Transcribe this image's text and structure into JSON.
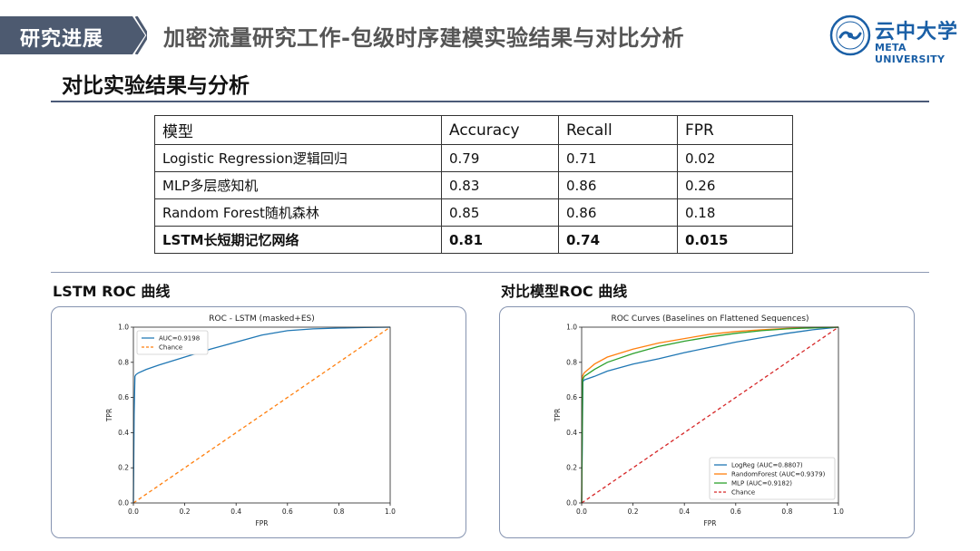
{
  "header": {
    "tag": "研究进展",
    "title": "加密流量研究工作-包级时序建模实验结果与对比分析",
    "logo_cn": "云中大学",
    "logo_en": "META UNIVERSITY",
    "accent": "#1a5fa6",
    "tag_color": "#4d5a70"
  },
  "section_title": "对比实验结果与分析",
  "table": {
    "headers": [
      "模型",
      "Accuracy",
      "Recall",
      "FPR"
    ],
    "rows": [
      [
        "Logistic Regression逻辑回归",
        "0.79",
        "0.71",
        "0.02"
      ],
      [
        "MLP多层感知机",
        "0.83",
        "0.86",
        "0.26"
      ],
      [
        "Random Forest随机森林",
        "0.85",
        "0.86",
        "0.18"
      ],
      [
        "LSTM长短期记忆网络",
        "0.81",
        "0.74",
        "0.015"
      ]
    ]
  },
  "left_panel": {
    "heading": "LSTM ROC 曲线"
  },
  "right_panel": {
    "heading": "对比模型ROC 曲线"
  },
  "chart_data": [
    {
      "type": "line",
      "title": "ROC - LSTM (masked+ES)",
      "xlabel": "FPR",
      "ylabel": "TPR",
      "xlim": [
        0,
        1
      ],
      "ylim": [
        0,
        1
      ],
      "xticks": [
        "0.0",
        "0.2",
        "0.4",
        "0.6",
        "0.8",
        "1.0"
      ],
      "yticks": [
        "0.0",
        "0.2",
        "0.4",
        "0.6",
        "0.8",
        "1.0"
      ],
      "grid": false,
      "legend": "top-left",
      "series": [
        {
          "name": "AUC=0.9198",
          "color": "#1f77b4",
          "style": "solid",
          "x": [
            0,
            0.003,
            0.006,
            0.01,
            0.02,
            0.05,
            0.1,
            0.2,
            0.3,
            0.4,
            0.5,
            0.6,
            0.7,
            0.8,
            0.9,
            1.0
          ],
          "y": [
            0,
            0.5,
            0.72,
            0.73,
            0.74,
            0.76,
            0.785,
            0.83,
            0.875,
            0.915,
            0.955,
            0.98,
            0.99,
            0.995,
            0.998,
            1.0
          ]
        },
        {
          "name": "Chance",
          "color": "#ff7f0e",
          "style": "dashed",
          "x": [
            0,
            1
          ],
          "y": [
            0,
            1
          ]
        }
      ]
    },
    {
      "type": "line",
      "title": "ROC Curves (Baselines on Flattened Sequences)",
      "xlabel": "FPR",
      "ylabel": "TPR",
      "xlim": [
        0,
        1
      ],
      "ylim": [
        0,
        1
      ],
      "xticks": [
        "0.0",
        "0.2",
        "0.4",
        "0.6",
        "0.8",
        "1.0"
      ],
      "yticks": [
        "0.0",
        "0.2",
        "0.4",
        "0.6",
        "0.8",
        "1.0"
      ],
      "grid": false,
      "legend": "bottom-right",
      "series": [
        {
          "name": "LogReg (AUC=0.8807)",
          "color": "#1f77b4",
          "style": "solid",
          "x": [
            0,
            0.005,
            0.01,
            0.05,
            0.1,
            0.2,
            0.3,
            0.4,
            0.5,
            0.6,
            0.7,
            0.8,
            0.9,
            1.0
          ],
          "y": [
            0,
            0.69,
            0.7,
            0.72,
            0.75,
            0.79,
            0.82,
            0.855,
            0.885,
            0.915,
            0.94,
            0.965,
            0.985,
            1.0
          ]
        },
        {
          "name": "RandomForest (AUC=0.9379)",
          "color": "#ff7f0e",
          "style": "solid",
          "x": [
            0,
            0.003,
            0.01,
            0.05,
            0.1,
            0.2,
            0.3,
            0.4,
            0.5,
            0.6,
            0.7,
            0.8,
            0.9,
            1.0
          ],
          "y": [
            0,
            0.72,
            0.74,
            0.79,
            0.83,
            0.875,
            0.91,
            0.935,
            0.96,
            0.975,
            0.985,
            0.993,
            0.998,
            1.0
          ]
        },
        {
          "name": "MLP (AUC=0.9182)",
          "color": "#2ca02c",
          "style": "solid",
          "x": [
            0,
            0.004,
            0.01,
            0.05,
            0.1,
            0.2,
            0.3,
            0.4,
            0.5,
            0.6,
            0.7,
            0.8,
            0.9,
            1.0
          ],
          "y": [
            0,
            0.7,
            0.72,
            0.76,
            0.8,
            0.85,
            0.89,
            0.92,
            0.945,
            0.965,
            0.98,
            0.99,
            0.996,
            1.0
          ]
        },
        {
          "name": "Chance",
          "color": "#d62728",
          "style": "dashed",
          "x": [
            0,
            1
          ],
          "y": [
            0,
            1
          ]
        }
      ]
    }
  ]
}
